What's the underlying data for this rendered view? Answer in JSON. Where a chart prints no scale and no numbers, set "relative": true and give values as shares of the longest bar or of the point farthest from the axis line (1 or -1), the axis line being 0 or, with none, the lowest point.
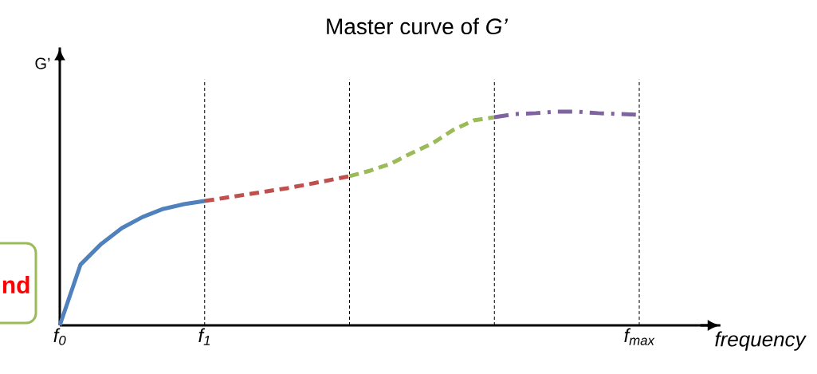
{
  "chart_data": {
    "type": "line",
    "title": "Master curve of *G’*",
    "xlabel": "frequency",
    "ylabel": "G’",
    "relative": true,
    "categories": [
      "f$_{0}$",
      null,
      null,
      null,
      null,
      null,
      null,
      "f$_{1}$",
      null,
      null,
      null,
      null,
      null,
      null,
      null,
      null,
      null,
      null,
      null,
      null,
      null,
      null,
      null,
      null,
      null,
      null,
      null,
      null,
      "f$_{max}$"
    ],
    "series": [
      {
        "color": "#4f81bd",
        "line_style": "solid",
        "values": [
          0,
          0.284,
          0.381,
          0.455,
          0.507,
          0.545,
          0.567,
          0.582,
          null,
          null,
          null,
          null,
          null,
          null,
          null,
          null,
          null,
          null,
          null,
          null,
          null,
          null,
          null,
          null,
          null,
          null,
          null,
          null,
          null
        ]
      },
      {
        "color": "#c0504d",
        "line_style": "dashed",
        "values": [
          null,
          null,
          null,
          null,
          null,
          null,
          null,
          0.582,
          0.597,
          0.612,
          0.627,
          0.642,
          0.66,
          0.679,
          0.698,
          null,
          null,
          null,
          null,
          null,
          null,
          null,
          null,
          null,
          null,
          null,
          null,
          null,
          null
        ]
      },
      {
        "color": "#9bbb59",
        "line_style": "dashed",
        "values": [
          null,
          null,
          null,
          null,
          null,
          null,
          null,
          null,
          null,
          null,
          null,
          null,
          null,
          null,
          0.698,
          0.724,
          0.757,
          0.806,
          0.851,
          0.914,
          0.959,
          0.974,
          null,
          null,
          null,
          null,
          null,
          null,
          null
        ]
      },
      {
        "color": "#8064a2",
        "line_style": "dashdot",
        "values": [
          null,
          null,
          null,
          null,
          null,
          null,
          null,
          null,
          null,
          null,
          null,
          null,
          null,
          null,
          null,
          null,
          null,
          null,
          null,
          null,
          null,
          0.974,
          0.989,
          0.993,
          1.0,
          1.0,
          0.993,
          0.989,
          0.985
        ]
      }
    ],
    "grid": "x",
    "annotations": [
      "nd"
    ]
  }
}
